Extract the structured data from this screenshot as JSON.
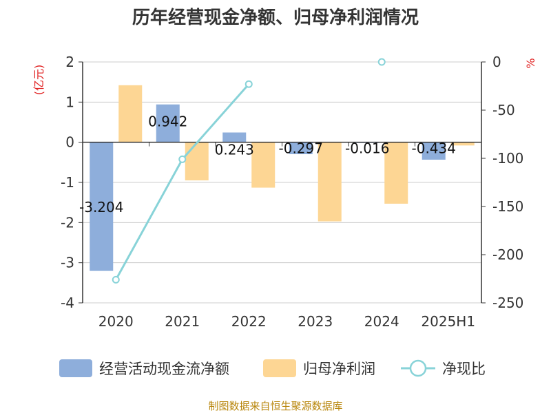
{
  "chart_data": {
    "type": "bar",
    "title": "历年经营现金净额、归母净利润情况",
    "categories": [
      "2020",
      "2021",
      "2022",
      "2023",
      "2024",
      "2025H1"
    ],
    "y_left_unit": "(亿元)",
    "y_right_unit": "%",
    "y_left_range": [
      -4,
      2
    ],
    "y_left_ticks": [
      2,
      1,
      0,
      -1,
      -2,
      -3,
      -4
    ],
    "y_right_range": [
      -250,
      0
    ],
    "y_right_ticks": [
      0,
      -50,
      -100,
      -150,
      -200,
      -250
    ],
    "grid": true,
    "legend_position": "bottom",
    "series": [
      {
        "name": "经营活动现金流净额",
        "type": "bar",
        "axis": "left",
        "color": "#8eaedb",
        "values": [
          -3.204,
          0.942,
          0.243,
          -0.297,
          -0.016,
          -0.434
        ],
        "labels": [
          "-3.204",
          "0.942",
          "0.243",
          "-0.297",
          "-0.016",
          "-0.434"
        ]
      },
      {
        "name": "归母净利润",
        "type": "bar",
        "axis": "left",
        "color": "#fdd694",
        "values": [
          1.42,
          -0.95,
          -1.13,
          -1.97,
          -1.53,
          -0.08
        ]
      },
      {
        "name": "净现比",
        "type": "line",
        "axis": "right",
        "color": "#88d3d8",
        "values": [
          -226,
          -101,
          -23,
          null,
          0,
          null
        ]
      }
    ]
  },
  "source": "制图数据来自恒生聚源数据库"
}
